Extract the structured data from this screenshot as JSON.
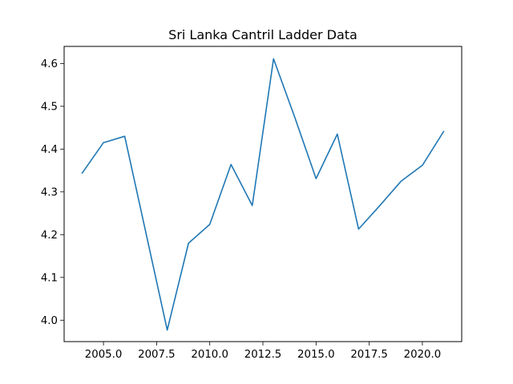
{
  "chart_data": {
    "type": "line",
    "title": "Sri Lanka Cantril Ladder Data",
    "xlabel": "",
    "ylabel": "",
    "x": [
      2004,
      2005,
      2006,
      2008,
      2009,
      2010,
      2011,
      2012,
      2013,
      2014,
      2015,
      2016,
      2017,
      2018,
      2019,
      2020,
      2021
    ],
    "y": [
      4.344,
      4.415,
      4.43,
      3.977,
      4.18,
      4.224,
      4.364,
      4.268,
      4.611,
      4.474,
      4.331,
      4.435,
      4.213,
      4.268,
      4.325,
      4.362,
      4.441
    ],
    "xlim": [
      2003.15,
      2021.85
    ],
    "ylim": [
      3.95,
      4.64
    ],
    "xticks": [
      2005.0,
      2007.5,
      2010.0,
      2012.5,
      2015.0,
      2017.5,
      2020.0
    ],
    "xtick_labels": [
      "2005.0",
      "2007.5",
      "2010.0",
      "2012.5",
      "2015.0",
      "2017.5",
      "2020.0"
    ],
    "yticks": [
      4.0,
      4.1,
      4.2,
      4.3,
      4.4,
      4.5,
      4.6
    ],
    "ytick_labels": [
      "4.0",
      "4.1",
      "4.2",
      "4.3",
      "4.4",
      "4.5",
      "4.6"
    ],
    "line_color": "#1f77b4",
    "grid": false,
    "legend": "none"
  }
}
